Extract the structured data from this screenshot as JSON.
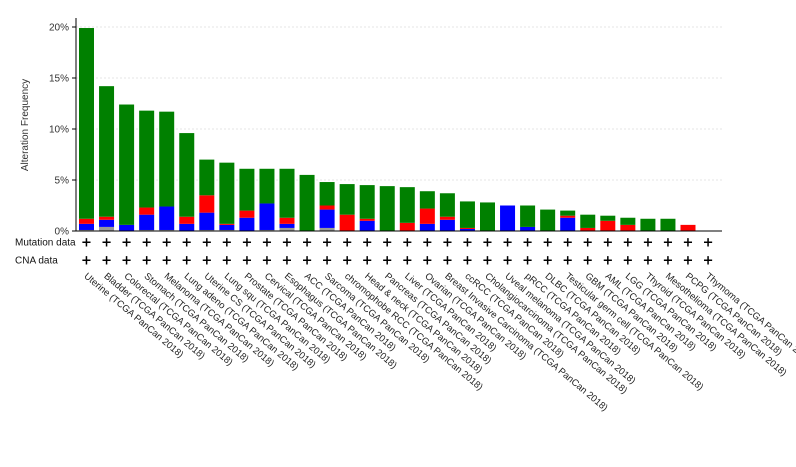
{
  "chart_data": {
    "type": "bar",
    "ylabel": "Alteration Frequency",
    "ylim": [
      0,
      20
    ],
    "yticks": [
      "0%",
      "5%",
      "10%",
      "15%",
      "20%"
    ],
    "grid": true,
    "row_labels": [
      "Mutation data",
      "CNA data"
    ],
    "row_marker": "+",
    "categories": [
      "Uterine (TCGA PanCan 2018)",
      "Bladder (TCGA PanCan 2018)",
      "Colorectal (TCGA PanCan 2018)",
      "Stomach (TCGA PanCan 2018)",
      "Melanoma (TCGA PanCan 2018)",
      "Lung adeno (TCGA PanCan 2018)",
      "Uterine CS (TCGA PanCan 2018)",
      "Lung squ (TCGA PanCan 2018)",
      "Prostate (TCGA PanCan 2018)",
      "Cervical (TCGA PanCan 2018)",
      "Esophagus (TCGA PanCan 2018)",
      "ACC (TCGA PanCan 2018)",
      "Sarcoma (TCGA PanCan 2018)",
      "chromophobe RCC (TCGA PanCan 2018)",
      "Head & neck (TCGA PanCan 2018)",
      "Pancreas (TCGA PanCan 2018)",
      "Liver (TCGA PanCan 2018)",
      "Ovarian (TCGA PanCan 2018)",
      "Breast Invasive Carcinoma (TCGA PanCan 2018)",
      "ccRCC (TCGA PanCan 2018)",
      "Cholangiocarcinoma (TCGA PanCan 2018)",
      "Uveal melanoma (TCGA PanCan 2018)",
      "pRCC (TCGA PanCan 2018)",
      "DLBC (TCGA PanCan 2018)",
      "Testicular germ cell (TCGA PanCan 2018)",
      "GBM (TCGA PanCan 2018)",
      "AML (TCGA PanCan 2018)",
      "LGG (TCGA PanCan 2018)",
      "Thyroid (TCGA PanCan 2018)",
      "Mesothelioma (TCGA PanCan 2018)",
      "PCPG (TCGA PanCan 2018)",
      "Thymoma (TCGA PanCan 2018)"
    ],
    "series": [
      {
        "color": "#999999",
        "values": [
          0.1,
          0.4,
          0,
          0.1,
          0.1,
          0,
          0.1,
          0.1,
          0,
          0.1,
          0.3,
          0,
          0.3,
          0,
          0,
          0,
          0,
          0,
          0,
          0,
          0,
          0,
          0,
          0,
          0,
          0,
          0,
          0,
          0,
          0,
          0,
          0
        ]
      },
      {
        "color": "#0000ff",
        "values": [
          0.6,
          0.7,
          0.6,
          1.5,
          2.3,
          0.7,
          1.7,
          0.5,
          1.3,
          2.6,
          0.4,
          0,
          1.8,
          0,
          1.0,
          0,
          0,
          0.7,
          1.1,
          0.2,
          0,
          2.5,
          0.4,
          0,
          1.3,
          0,
          0,
          0,
          0,
          0,
          0,
          0
        ]
      },
      {
        "color": "#ff0000",
        "values": [
          0.5,
          0.3,
          0,
          0.7,
          0,
          0.7,
          1.7,
          0.1,
          0.7,
          0,
          0.6,
          0,
          0.4,
          1.6,
          0.2,
          0,
          0.8,
          1.5,
          0.3,
          0.1,
          0,
          0,
          0,
          0,
          0.2,
          0.3,
          1.0,
          0.6,
          0,
          0,
          0.6,
          0
        ]
      },
      {
        "color": "#008000",
        "values": [
          18.7,
          12.8,
          11.8,
          9.5,
          9.3,
          8.2,
          3.5,
          6.0,
          4.1,
          3.4,
          4.8,
          5.5,
          2.3,
          3.0,
          3.3,
          4.4,
          3.5,
          1.7,
          2.3,
          2.6,
          2.8,
          0,
          2.1,
          2.1,
          0.5,
          1.3,
          0.5,
          0.7,
          1.2,
          1.2,
          0,
          0
        ]
      }
    ]
  }
}
